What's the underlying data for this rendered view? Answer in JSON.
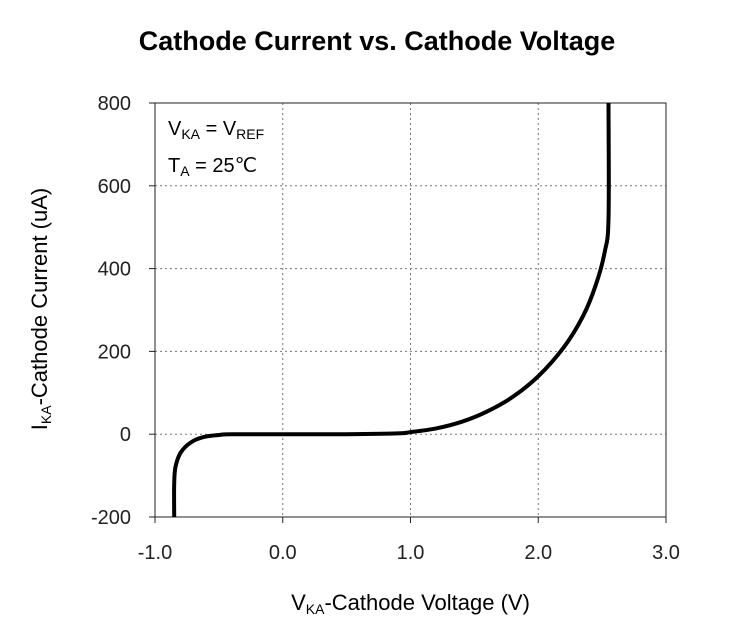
{
  "chart_data": {
    "type": "line",
    "title": "Cathode Current vs. Cathode Voltage",
    "xlabel": {
      "symbol": "V",
      "sub": "KA",
      "text": "-Cathode Voltage (V)"
    },
    "ylabel": {
      "symbol": "I",
      "sub": "KA",
      "text": "-Cathode Current (uA)"
    },
    "xlim": [
      -1.0,
      3.0
    ],
    "ylim": [
      -200,
      800
    ],
    "x_ticks": [
      -1.0,
      0.0,
      1.0,
      2.0,
      3.0
    ],
    "x_tick_labels": [
      "-1.0",
      "0.0",
      "1.0",
      "2.0",
      "3.0"
    ],
    "y_ticks": [
      -200,
      0,
      200,
      400,
      600,
      800
    ],
    "y_tick_labels": [
      "-200",
      "0",
      "200",
      "400",
      "600",
      "800"
    ],
    "grid": true,
    "annotations": [
      {
        "a": "V",
        "a_sub": "KA",
        "mid": " = V",
        "b_sub": "REF",
        "tail": ""
      },
      {
        "a": "T",
        "a_sub": "A",
        "mid": " = 25",
        "b_sub": "",
        "tail": "℃"
      }
    ],
    "series": [
      {
        "name": "I_KA",
        "x": [
          -0.85,
          -0.85,
          -0.84,
          -0.8,
          -0.72,
          -0.62,
          -0.5,
          -0.4,
          0.0,
          0.5,
          0.9,
          1.0,
          1.2,
          1.4,
          1.6,
          1.8,
          2.0,
          2.2,
          2.35,
          2.45,
          2.52,
          2.55,
          2.55
        ],
        "y": [
          -200,
          -120,
          -80,
          -45,
          -20,
          -7,
          -2,
          0,
          0,
          0,
          2,
          5,
          14,
          30,
          55,
          90,
          140,
          210,
          285,
          360,
          440,
          520,
          800
        ]
      }
    ]
  }
}
